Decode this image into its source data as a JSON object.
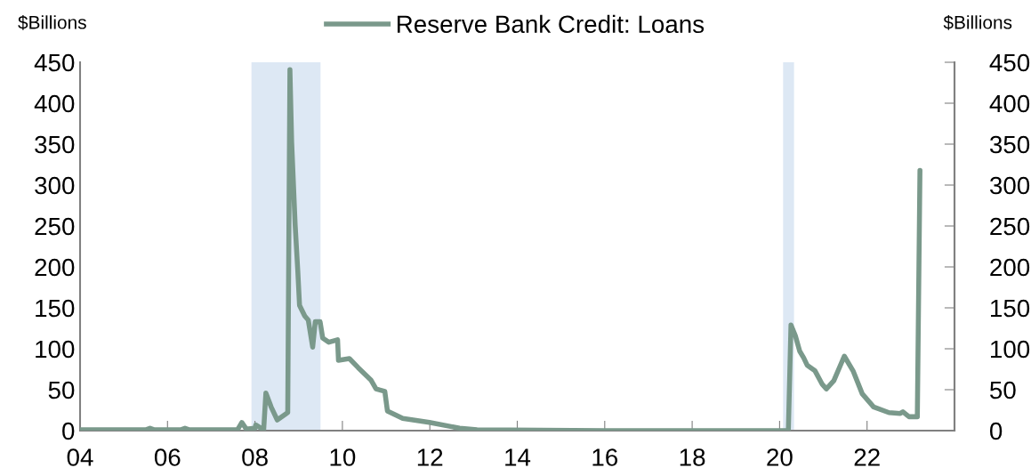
{
  "chart_data": {
    "type": "line",
    "ylabel": "$Billions",
    "y2label": "$Billions",
    "xlim": [
      2004,
      2024
    ],
    "xticks": [
      {
        "value": 2004,
        "label": "04"
      },
      {
        "value": 2006,
        "label": "06"
      },
      {
        "value": 2008,
        "label": "08"
      },
      {
        "value": 2010,
        "label": "10"
      },
      {
        "value": 2012,
        "label": "12"
      },
      {
        "value": 2014,
        "label": "14"
      },
      {
        "value": 2016,
        "label": "16"
      },
      {
        "value": 2018,
        "label": "18"
      },
      {
        "value": 2020,
        "label": "20"
      },
      {
        "value": 2022,
        "label": "22"
      }
    ],
    "ylim": [
      0,
      450
    ],
    "yticks": [
      0,
      50,
      100,
      150,
      200,
      250,
      300,
      350,
      400,
      450
    ],
    "y2lim": [
      0,
      450
    ],
    "y2ticks": [
      0,
      50,
      100,
      150,
      200,
      250,
      300,
      350,
      400,
      450
    ],
    "legend": "top",
    "grid": false,
    "line_style": "solid",
    "marker": "none",
    "bands": [
      {
        "axis": "x",
        "from": 2007.92,
        "to": 2009.5,
        "color": "#dde8f4"
      },
      {
        "axis": "x",
        "from": 2020.08,
        "to": 2020.33,
        "color": "#dde8f4"
      }
    ],
    "series": [
      {
        "name": "Reserve Bank Credit: Loans",
        "color": "#7a998b",
        "x": [
          2004.0,
          2005.5,
          2005.6,
          2005.7,
          2006.3,
          2006.4,
          2006.5,
          2007.6,
          2007.7,
          2007.8,
          2008.0,
          2008.02,
          2008.2,
          2008.25,
          2008.37,
          2008.51,
          2008.72,
          2008.75,
          2008.8,
          2008.84,
          2008.92,
          2008.98,
          2009.02,
          2009.14,
          2009.22,
          2009.32,
          2009.38,
          2009.49,
          2009.55,
          2009.69,
          2009.89,
          2009.91,
          2010.16,
          2010.36,
          2010.65,
          2010.77,
          2010.97,
          2011.03,
          2011.38,
          2011.99,
          2012.68,
          2013.08,
          2016.0,
          2020.2,
          2020.26,
          2020.36,
          2020.46,
          2020.55,
          2020.63,
          2020.81,
          2020.97,
          2021.07,
          2021.24,
          2021.48,
          2021.68,
          2021.89,
          2022.15,
          2022.5,
          2022.76,
          2022.82,
          2022.96,
          2023.15,
          2023.21
        ],
        "values": [
          1,
          1,
          3,
          1,
          1,
          3,
          1,
          1,
          10,
          2,
          3,
          7,
          1,
          46,
          29,
          13,
          21,
          22,
          441,
          352,
          251,
          195,
          153,
          140,
          135,
          102,
          133,
          133,
          113,
          108,
          111,
          86,
          88,
          77,
          62,
          51,
          48,
          24,
          15,
          10,
          3,
          1,
          0,
          0,
          129,
          116,
          97,
          89,
          80,
          73,
          57,
          51,
          61,
          91,
          73,
          45,
          29,
          22,
          21,
          23,
          17,
          17,
          318
        ]
      }
    ]
  }
}
